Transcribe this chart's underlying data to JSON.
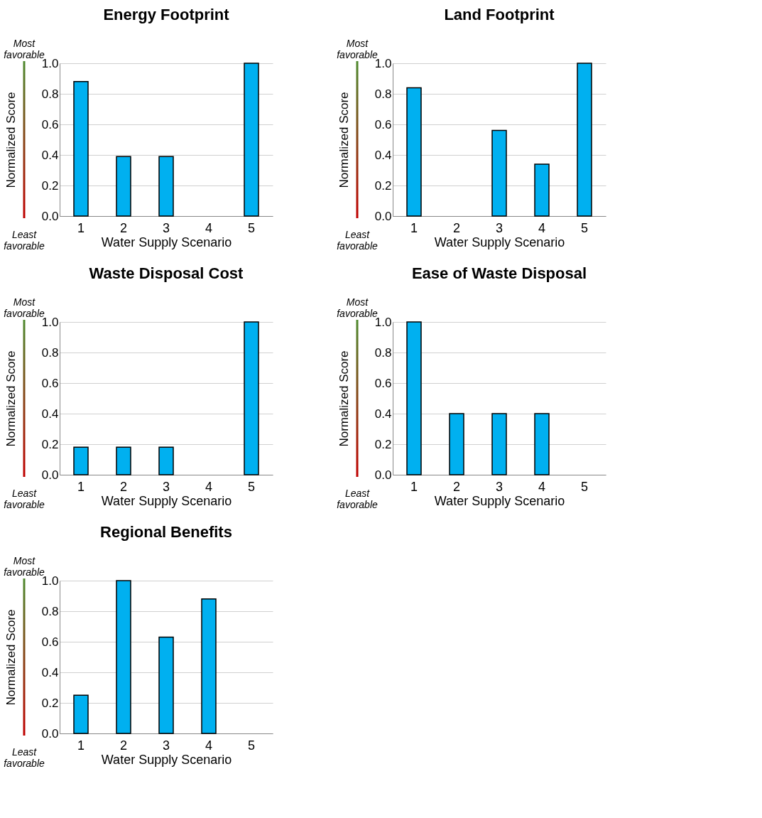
{
  "chart_data": [
    {
      "type": "bar",
      "title": "Energy Footprint",
      "xlabel": "Water Supply Scenario",
      "ylabel": "Normalized Score",
      "categories": [
        "1",
        "2",
        "3",
        "4",
        "5"
      ],
      "color": "#00b0f0",
      "values": [
        0.88,
        0.39,
        0.39,
        0,
        1.0
      ],
      "ylim": [
        0,
        1
      ],
      "yticks": [
        {
          "value": 0,
          "label": "0.0"
        },
        {
          "value": 0.2,
          "label": "0.2"
        },
        {
          "value": 0.4,
          "label": "0.4"
        },
        {
          "value": 0.6,
          "label": "0.6"
        },
        {
          "value": 0.8,
          "label": "0.8"
        },
        {
          "value": 1,
          "label": "1.0"
        }
      ],
      "grid": "y",
      "annotations": [
        "Most favorable",
        "Least favorable"
      ]
    },
    {
      "type": "bar",
      "title": "Land Footprint",
      "xlabel": "Water Supply Scenario",
      "ylabel": "Normalized Score",
      "categories": [
        "1",
        "2",
        "3",
        "4",
        "5"
      ],
      "color": "#00b0f0",
      "values": [
        0.84,
        0,
        0.56,
        0.34,
        1.0
      ],
      "ylim": [
        0,
        1
      ],
      "yticks": [
        {
          "value": 0,
          "label": "0.0"
        },
        {
          "value": 0.2,
          "label": "0.2"
        },
        {
          "value": 0.4,
          "label": "0.4"
        },
        {
          "value": 0.6,
          "label": "0.6"
        },
        {
          "value": 0.8,
          "label": "0.8"
        },
        {
          "value": 1,
          "label": "1.0"
        }
      ],
      "grid": "y",
      "annotations": [
        "Most favorable",
        "Least favorable"
      ]
    },
    {
      "type": "bar",
      "title": "Waste Disposal Cost",
      "xlabel": "Water Supply Scenario",
      "ylabel": "Normalized Score",
      "categories": [
        "1",
        "2",
        "3",
        "4",
        "5"
      ],
      "color": "#00b0f0",
      "values": [
        0.18,
        0.18,
        0.18,
        0,
        1.0
      ],
      "ylim": [
        0,
        1
      ],
      "yticks": [
        {
          "value": 0,
          "label": "0.0"
        },
        {
          "value": 0.2,
          "label": "0.2"
        },
        {
          "value": 0.4,
          "label": "0.4"
        },
        {
          "value": 0.6,
          "label": "0.6"
        },
        {
          "value": 0.8,
          "label": "0.8"
        },
        {
          "value": 1,
          "label": "1.0"
        }
      ],
      "grid": "y",
      "annotations": [
        "Most favorable",
        "Least favorable"
      ]
    },
    {
      "type": "bar",
      "title": "Ease of Waste Disposal",
      "xlabel": "Water Supply Scenario",
      "ylabel": "Normalized Score",
      "categories": [
        "1",
        "2",
        "3",
        "4",
        "5"
      ],
      "color": "#00b0f0",
      "values": [
        1.0,
        0.4,
        0.4,
        0.4,
        0
      ],
      "ylim": [
        0,
        1
      ],
      "yticks": [
        {
          "value": 0,
          "label": "0.0"
        },
        {
          "value": 0.2,
          "label": "0.2"
        },
        {
          "value": 0.4,
          "label": "0.4"
        },
        {
          "value": 0.6,
          "label": "0.6"
        },
        {
          "value": 0.8,
          "label": "0.8"
        },
        {
          "value": 1,
          "label": "1.0"
        }
      ],
      "grid": "y",
      "annotations": [
        "Most favorable",
        "Least favorable"
      ]
    },
    {
      "type": "bar",
      "title": "Regional Benefits",
      "xlabel": "Water Supply Scenario",
      "ylabel": "Normalized Score",
      "categories": [
        "1",
        "2",
        "3",
        "4",
        "5"
      ],
      "color": "#00b0f0",
      "values": [
        0.25,
        1.0,
        0.63,
        0.88,
        0
      ],
      "ylim": [
        0,
        1
      ],
      "yticks": [
        {
          "value": 0,
          "label": "0.0"
        },
        {
          "value": 0.2,
          "label": "0.2"
        },
        {
          "value": 0.4,
          "label": "0.4"
        },
        {
          "value": 0.6,
          "label": "0.6"
        },
        {
          "value": 0.8,
          "label": "0.8"
        },
        {
          "value": 1,
          "label": "1.0"
        }
      ],
      "grid": "y",
      "annotations": [
        "Most favorable",
        "Least favorable"
      ]
    }
  ]
}
